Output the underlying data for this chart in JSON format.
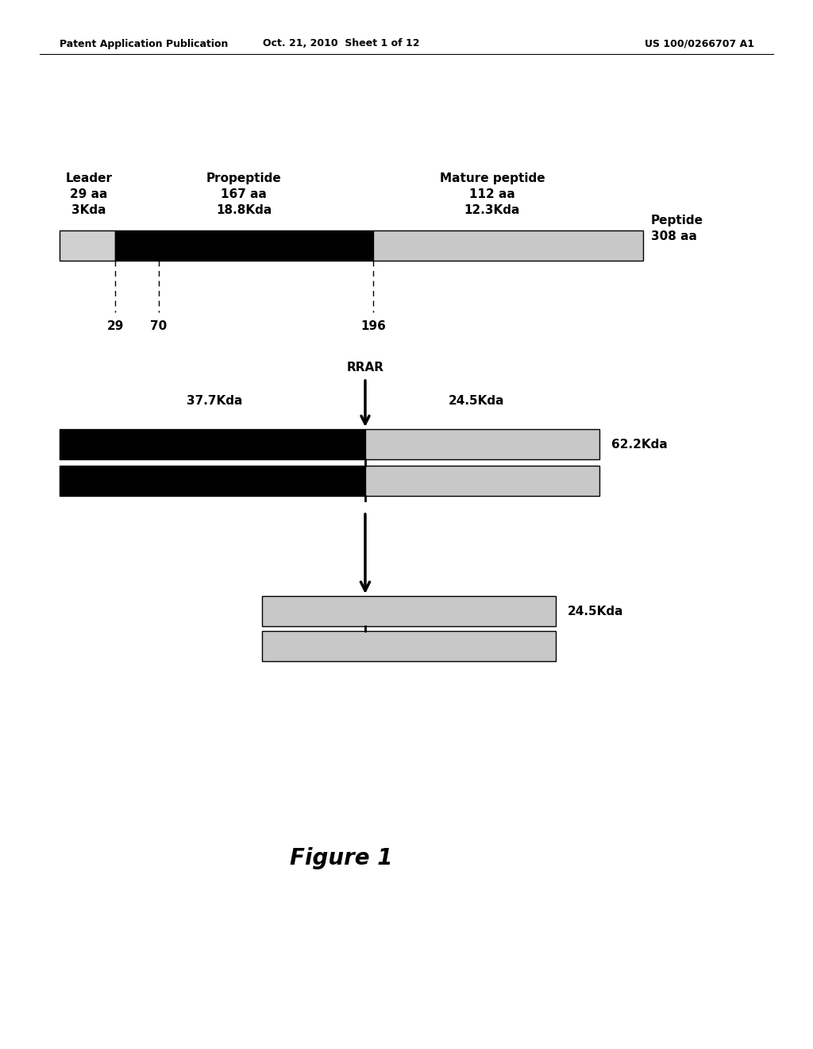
{
  "header_left": "Patent Application Publication",
  "header_center": "Oct. 21, 2010  Sheet 1 of 12",
  "header_right": "US 100/0266707 A1",
  "figure_label": "Figure 1",
  "bg_color": "#ffffff",
  "text_color": "#000000",
  "leader_label": [
    "Leader",
    "29 aa",
    "3Kda"
  ],
  "propeptide_label": [
    "Propeptide",
    "167 aa",
    "18.8Kda"
  ],
  "mature_label": [
    "Mature peptide",
    "112 aa",
    "12.3Kda"
  ],
  "peptide_label": [
    "Peptide",
    "308 aa"
  ],
  "tick_labels": [
    "29",
    "70",
    "196"
  ],
  "rrar_label": "RRAR",
  "kda_377": "37.7Kda",
  "kda_245a": "24.5Kda",
  "kda_622": "62.2Kda",
  "kda_245b": "24.5Kda",
  "gray_light": "#c8c8c8",
  "gray_dark": "#b0b0b0"
}
